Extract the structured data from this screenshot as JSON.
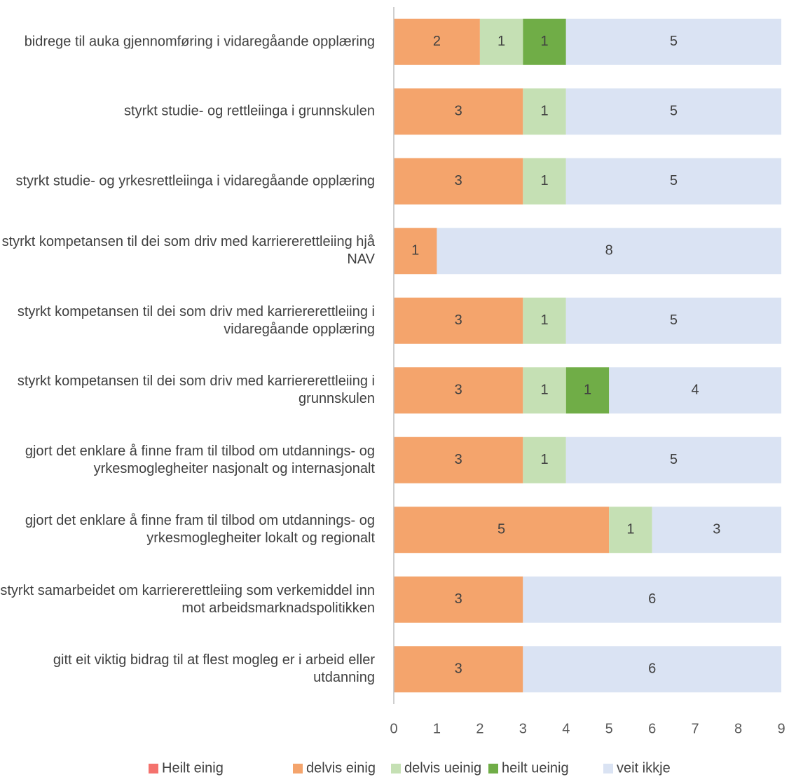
{
  "chart_data": {
    "type": "stacked-bar-horizontal",
    "categories": [
      "bidrege til auka gjennomføring i vidaregåande opplæring",
      "styrkt studie- og rettleiinga i grunnskulen",
      "styrkt studie- og yrkesrettleiinga i vidaregåande opplæring",
      "styrkt kompetansen til dei som driv med karriererettleiing hjå NAV",
      "styrkt kompetansen til dei som driv med karriererettleiing i vidaregåande opplæring",
      "styrkt kompetansen til dei som driv med karriererettleiing i grunnskulen",
      "gjort det enklare å finne fram til tilbod om utdannings- og yrkesmoglegheiter nasjonalt og internasjonalt",
      "gjort det enklare å finne fram til tilbod om utdannings- og yrkesmoglegheiter lokalt og regionalt",
      "styrkt samarbeidet om karriererettleiing som verkemiddel inn mot arbeidsmarknadspolitikken",
      "gitt eit viktig bidrag til at flest mogleg er i arbeid eller utdanning"
    ],
    "series": [
      {
        "name": "Heilt einig",
        "color": "#f4726d",
        "values": [
          0,
          0,
          0,
          0,
          0,
          0,
          0,
          0,
          0,
          0
        ]
      },
      {
        "name": "delvis einig",
        "color": "#f4a46c",
        "values": [
          2,
          3,
          3,
          1,
          3,
          3,
          3,
          5,
          3,
          3
        ]
      },
      {
        "name": "delvis ueinig",
        "color": "#c5e0b4",
        "values": [
          1,
          1,
          1,
          0,
          1,
          1,
          1,
          1,
          0,
          0
        ]
      },
      {
        "name": "heilt ueinig",
        "color": "#70ad47",
        "values": [
          1,
          0,
          0,
          0,
          0,
          1,
          0,
          0,
          0,
          0
        ]
      },
      {
        "name": "veit ikkje",
        "color": "#dae3f3",
        "values": [
          5,
          5,
          5,
          8,
          5,
          4,
          5,
          3,
          6,
          6
        ]
      }
    ],
    "xlim": [
      0,
      9
    ],
    "xticks": [
      0,
      1,
      2,
      3,
      4,
      5,
      6,
      7,
      8,
      9
    ],
    "legend": "bottom"
  }
}
